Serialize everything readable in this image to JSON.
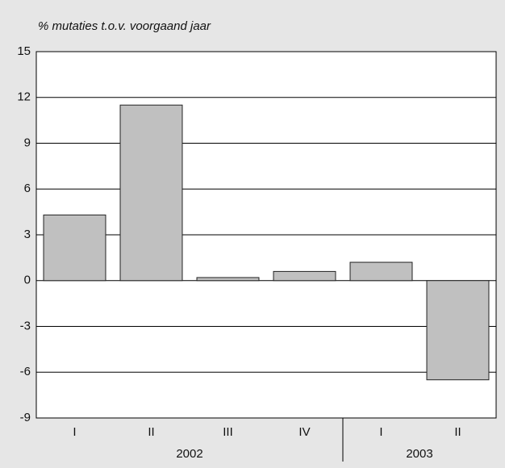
{
  "chart_data": {
    "type": "bar",
    "y_label": "% mutaties t.o.v. voorgaand jaar",
    "groups": [
      {
        "label": "2002",
        "categories": [
          "I",
          "II",
          "III",
          "IV"
        ],
        "values": [
          4.3,
          11.5,
          0.2,
          0.6
        ]
      },
      {
        "label": "2003",
        "categories": [
          "I",
          "II"
        ],
        "values": [
          1.2,
          -6.5
        ]
      }
    ],
    "color": "#c0c0c0",
    "ylim": [
      -9,
      15
    ],
    "yticks": [
      -9,
      -6,
      -3,
      0,
      3,
      6,
      9,
      12,
      15
    ],
    "grid": true
  }
}
